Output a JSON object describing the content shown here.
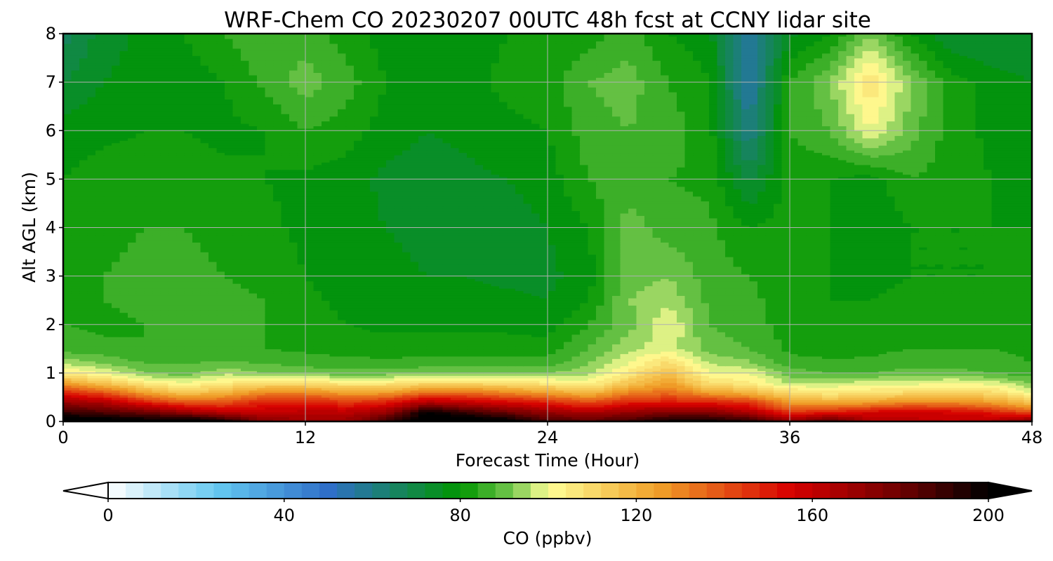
{
  "chart_data": {
    "type": "heatmap",
    "title": "WRF-Chem CO  20230207 00UTC 48h fcst at CCNY lidar site",
    "xlabel": "Forecast Time (Hour)",
    "ylabel": "Alt AGL (km)",
    "xlim": [
      0,
      48
    ],
    "ylim": [
      0,
      8
    ],
    "xticks": [
      0,
      12,
      24,
      36,
      48
    ],
    "yticks": [
      0,
      1,
      2,
      3,
      4,
      5,
      6,
      7,
      8
    ],
    "grid": true,
    "z_grid_x": [
      0,
      2,
      4,
      6,
      8,
      10,
      12,
      14,
      16,
      18,
      20,
      22,
      24,
      26,
      28,
      30,
      32,
      34,
      36,
      38,
      40,
      42,
      44,
      46,
      48
    ],
    "z_grid_y": [
      0,
      0.2,
      0.4,
      0.6,
      0.8,
      1.0,
      1.2,
      1.5,
      2.0,
      2.5,
      3.0,
      4.0,
      5.0,
      6.0,
      7.0,
      8.0
    ],
    "z_values": [
      [
        210,
        210,
        205,
        210,
        200,
        175,
        170,
        170,
        190,
        210,
        210,
        205,
        190,
        185,
        190,
        200,
        200,
        195,
        175,
        190,
        165,
        162,
        160,
        165,
        180
      ],
      [
        190,
        185,
        180,
        170,
        160,
        160,
        162,
        162,
        170,
        200,
        190,
        180,
        170,
        165,
        170,
        175,
        175,
        165,
        145,
        150,
        155,
        158,
        155,
        150,
        140
      ],
      [
        170,
        165,
        150,
        140,
        140,
        150,
        150,
        145,
        150,
        165,
        160,
        155,
        150,
        140,
        150,
        150,
        150,
        145,
        125,
        122,
        125,
        130,
        130,
        125,
        115
      ],
      [
        150,
        140,
        125,
        115,
        120,
        130,
        130,
        125,
        125,
        135,
        135,
        130,
        125,
        118,
        130,
        135,
        125,
        120,
        110,
        105,
        108,
        110,
        110,
        110,
        100
      ],
      [
        125,
        115,
        105,
        100,
        105,
        108,
        108,
        105,
        105,
        110,
        110,
        108,
        105,
        102,
        115,
        125,
        108,
        105,
        95,
        96,
        98,
        98,
        100,
        98,
        92
      ],
      [
        105,
        100,
        92,
        90,
        95,
        92,
        90,
        90,
        90,
        92,
        92,
        92,
        92,
        95,
        105,
        118,
        100,
        100,
        90,
        88,
        88,
        90,
        90,
        88,
        85
      ],
      [
        96,
        92,
        88,
        88,
        89,
        88,
        87,
        86,
        85,
        86,
        86,
        86,
        86,
        92,
        100,
        110,
        96,
        93,
        86,
        85,
        85,
        86,
        86,
        86,
        84
      ],
      [
        86,
        85,
        84,
        84,
        84,
        84,
        83,
        82,
        82,
        82,
        82,
        82,
        82,
        88,
        95,
        98,
        90,
        88,
        83,
        82,
        83,
        84,
        84,
        84,
        83
      ],
      [
        84,
        83,
        84,
        85,
        85,
        84,
        82,
        80,
        79,
        79,
        79,
        79,
        78,
        84,
        90,
        100,
        88,
        86,
        82,
        81,
        82,
        82,
        82,
        82,
        82
      ],
      [
        84,
        84,
        85,
        86,
        85,
        84,
        81,
        79,
        78,
        77,
        77,
        77,
        76,
        80,
        92,
        95,
        87,
        85,
        82,
        80,
        80,
        81,
        81,
        80,
        81
      ],
      [
        83,
        84,
        85,
        85,
        84,
        83,
        80,
        78,
        77,
        76,
        76,
        75,
        75,
        78,
        90,
        92,
        86,
        84,
        82,
        80,
        79,
        80,
        80,
        80,
        81
      ],
      [
        82,
        83,
        84,
        84,
        83,
        81,
        79,
        77,
        76,
        75,
        74,
        74,
        76,
        80,
        90,
        86,
        85,
        80,
        82,
        80,
        76,
        80,
        80,
        80,
        80
      ],
      [
        80,
        82,
        82,
        82,
        81,
        80,
        79,
        78,
        75,
        74,
        75,
        76,
        78,
        84,
        86,
        84,
        83,
        71,
        82,
        80,
        78,
        84,
        82,
        80,
        79
      ],
      [
        78,
        79,
        80,
        80,
        79,
        80,
        84,
        82,
        78,
        76,
        77,
        79,
        80,
        86,
        88,
        86,
        82,
        60,
        84,
        88,
        100,
        90,
        82,
        79,
        78
      ],
      [
        72,
        76,
        78,
        78,
        80,
        85,
        90,
        86,
        80,
        78,
        79,
        81,
        82,
        88,
        90,
        84,
        80,
        55,
        84,
        92,
        108,
        92,
        82,
        78,
        76
      ],
      [
        66,
        74,
        77,
        80,
        84,
        88,
        86,
        82,
        78,
        77,
        78,
        80,
        80,
        82,
        86,
        80,
        78,
        55,
        75,
        80,
        92,
        80,
        72,
        72,
        72
      ]
    ],
    "colorbar": {
      "label": "CO  (ppbv)",
      "min": 0,
      "max": 200,
      "ticks": [
        0,
        40,
        80,
        120,
        160,
        200
      ],
      "extend": "both",
      "colors": [
        "#ffffff",
        "#64c8f0",
        "#2f6fc8",
        "#009600",
        "#78c850",
        "#ffff96",
        "#f0a028",
        "#d70000",
        "#6e0000",
        "#000000"
      ],
      "color_stops": [
        0,
        25,
        50,
        80,
        92,
        100,
        125,
        155,
        180,
        200
      ]
    }
  }
}
